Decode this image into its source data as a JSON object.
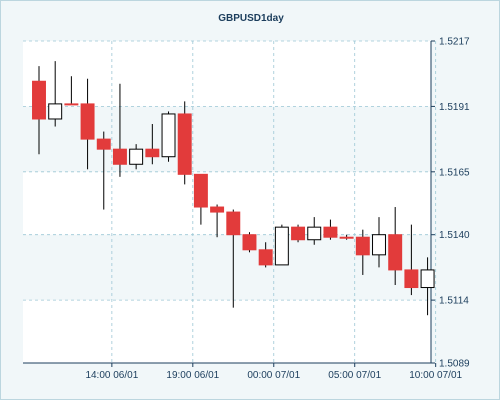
{
  "chart_data": {
    "type": "candlestick",
    "title": "GBPUSD1day",
    "xlabel": "",
    "ylabel": "",
    "ylim": [
      1.5089,
      1.5217
    ],
    "y_ticks": [
      "1.5217",
      "1.5191",
      "1.5165",
      "1.5140",
      "1.5114",
      "1.5089"
    ],
    "x_ticks": [
      {
        "label": "14:00 06/01",
        "index": 4.5
      },
      {
        "label": "19:00 06/01",
        "index": 9.5
      },
      {
        "label": "00:00 07/01",
        "index": 14.5
      },
      {
        "label": "05:00 07/01",
        "index": 19.5
      },
      {
        "label": "10:00 07/01",
        "index": 24.5
      }
    ],
    "grid": true,
    "colors": {
      "bearish": "#e23b3b",
      "bullish": "#ffffff",
      "wick": "#000000",
      "grid": "#9cc7d5",
      "axis": "#1b3d5c",
      "band": "#ffffff",
      "background": "#f1f7f9"
    },
    "candles": [
      {
        "open": 1.5201,
        "high": 1.5207,
        "low": 1.5172,
        "close": 1.5186
      },
      {
        "open": 1.5186,
        "high": 1.5209,
        "low": 1.5183,
        "close": 1.5192
      },
      {
        "open": 1.5192,
        "high": 1.5203,
        "low": 1.5192,
        "close": 1.5192
      },
      {
        "open": 1.5192,
        "high": 1.5202,
        "low": 1.5166,
        "close": 1.5178
      },
      {
        "open": 1.5178,
        "high": 1.5181,
        "low": 1.515,
        "close": 1.5174
      },
      {
        "open": 1.5174,
        "high": 1.52,
        "low": 1.5163,
        "close": 1.5168
      },
      {
        "open": 1.5168,
        "high": 1.5176,
        "low": 1.5166,
        "close": 1.5174
      },
      {
        "open": 1.5174,
        "high": 1.5184,
        "low": 1.5168,
        "close": 1.5171
      },
      {
        "open": 1.5171,
        "high": 1.5189,
        "low": 1.5169,
        "close": 1.5188
      },
      {
        "open": 1.5188,
        "high": 1.5193,
        "low": 1.516,
        "close": 1.5164
      },
      {
        "open": 1.5164,
        "high": 1.5164,
        "low": 1.5144,
        "close": 1.5151
      },
      {
        "open": 1.5151,
        "high": 1.5152,
        "low": 1.5139,
        "close": 1.5149
      },
      {
        "open": 1.5149,
        "high": 1.515,
        "low": 1.5111,
        "close": 1.514
      },
      {
        "open": 1.514,
        "high": 1.5141,
        "low": 1.5133,
        "close": 1.5134
      },
      {
        "open": 1.5134,
        "high": 1.5137,
        "low": 1.5127,
        "close": 1.5128
      },
      {
        "open": 1.5128,
        "high": 1.5144,
        "low": 1.5128,
        "close": 1.5143
      },
      {
        "open": 1.5143,
        "high": 1.5144,
        "low": 1.5137,
        "close": 1.5138
      },
      {
        "open": 1.5138,
        "high": 1.5147,
        "low": 1.5136,
        "close": 1.5143
      },
      {
        "open": 1.5143,
        "high": 1.5146,
        "low": 1.5138,
        "close": 1.5139
      },
      {
        "open": 1.5139,
        "high": 1.514,
        "low": 1.5138,
        "close": 1.5139
      },
      {
        "open": 1.5139,
        "high": 1.5142,
        "low": 1.5124,
        "close": 1.5132
      },
      {
        "open": 1.5132,
        "high": 1.5147,
        "low": 1.5127,
        "close": 1.514
      },
      {
        "open": 1.514,
        "high": 1.5151,
        "low": 1.512,
        "close": 1.5126
      },
      {
        "open": 1.5126,
        "high": 1.5144,
        "low": 1.5116,
        "close": 1.5119
      },
      {
        "open": 1.5119,
        "high": 1.5131,
        "low": 1.5108,
        "close": 1.5126
      }
    ]
  }
}
